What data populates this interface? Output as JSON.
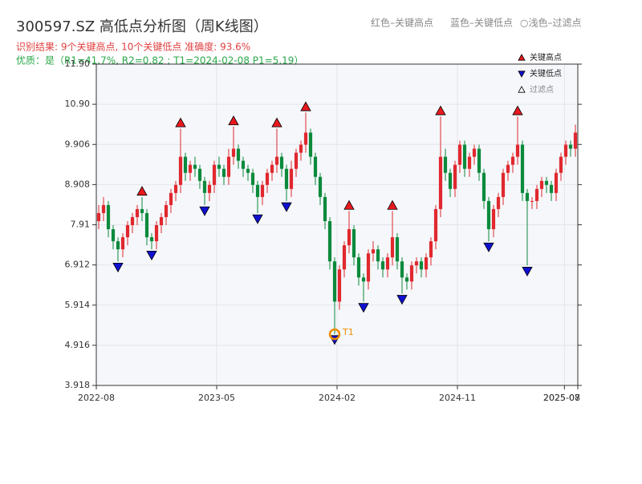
{
  "chart_data": {
    "type": "candlestick",
    "title": "300597.SZ 高低点分析图（周K线图）",
    "subtitle": "识别结果: 9个关键高点, 10个关键低点  准确度: 93.6%",
    "quality_note": "优质：是（R1=41.7%, R2=0.82 ; T1=2024-02-08 P1=5.19）",
    "header_legend": [
      "红色–关键高点",
      "蓝色–关键低点",
      "○浅色–过滤点"
    ],
    "up_color": "#e0282e",
    "down_color": "#0b8a3c",
    "grid": true,
    "legend": "upper right",
    "open": [
      8.0,
      8.2,
      8.4,
      7.8,
      7.5,
      7.3,
      7.6,
      7.9,
      8.1,
      8.3,
      8.2,
      7.6,
      7.5,
      7.9,
      8.1,
      8.4,
      8.7,
      8.9,
      9.6,
      9.2,
      9.4,
      9.3,
      9.0,
      8.7,
      8.9,
      9.4,
      9.3,
      9.1,
      9.6,
      9.8,
      9.5,
      9.3,
      9.2,
      8.9,
      8.6,
      8.9,
      9.2,
      9.4,
      9.6,
      9.3,
      8.8,
      9.3,
      9.7,
      9.9,
      10.2,
      9.6,
      9.1,
      8.6,
      8.0,
      7.0,
      6.0,
      6.8,
      7.4,
      7.8,
      7.1,
      6.6,
      6.5,
      7.2,
      7.3,
      7.0,
      6.8,
      7.1,
      7.6,
      7.0,
      6.6,
      6.5,
      6.9,
      7.0,
      6.8,
      7.1,
      7.5,
      8.3,
      9.6,
      9.2,
      8.8,
      9.4,
      9.9,
      9.3,
      9.6,
      9.8,
      9.2,
      8.5,
      7.8,
      8.3,
      8.6,
      9.2,
      9.4,
      9.6,
      9.9,
      8.7,
      8.5,
      8.5,
      8.8,
      9.0,
      8.9,
      8.7,
      9.2,
      9.6,
      9.9,
      9.8
    ],
    "high": [
      8.4,
      8.6,
      8.5,
      7.9,
      7.6,
      7.7,
      8.0,
      8.2,
      8.4,
      8.6,
      8.3,
      7.7,
      8.0,
      8.2,
      8.5,
      8.8,
      9.0,
      10.3,
      9.7,
      9.5,
      9.6,
      9.4,
      9.1,
      9.0,
      9.5,
      9.6,
      9.4,
      9.8,
      10.35,
      9.9,
      9.6,
      9.4,
      9.3,
      9.0,
      9.0,
      9.3,
      9.5,
      10.3,
      9.7,
      9.4,
      9.5,
      9.8,
      10.0,
      10.7,
      10.3,
      9.7,
      9.2,
      8.7,
      8.1,
      7.1,
      6.9,
      7.5,
      8.25,
      7.9,
      7.2,
      6.7,
      7.3,
      7.5,
      7.4,
      7.1,
      7.2,
      8.25,
      7.7,
      7.1,
      6.7,
      7.0,
      7.1,
      7.1,
      7.2,
      7.6,
      8.4,
      10.6,
      9.8,
      9.3,
      9.5,
      10.0,
      10.0,
      9.7,
      9.9,
      9.9,
      9.3,
      8.6,
      8.4,
      8.7,
      9.3,
      9.5,
      9.7,
      10.6,
      10.0,
      8.8,
      8.6,
      8.9,
      9.1,
      9.1,
      9.0,
      9.3,
      9.7,
      10.0,
      10.0,
      10.4
    ],
    "low": [
      7.8,
      8.0,
      7.6,
      7.3,
      7.0,
      7.1,
      7.4,
      7.7,
      7.9,
      8.0,
      7.4,
      7.3,
      7.3,
      7.7,
      7.9,
      8.2,
      8.5,
      8.7,
      9.0,
      9.0,
      9.1,
      8.8,
      8.4,
      8.5,
      8.7,
      9.1,
      8.9,
      8.9,
      9.4,
      9.3,
      9.1,
      9.0,
      8.7,
      8.2,
      8.4,
      8.7,
      9.0,
      9.2,
      9.1,
      8.5,
      8.6,
      9.1,
      9.5,
      9.7,
      9.4,
      8.9,
      8.4,
      7.8,
      6.8,
      5.2,
      5.8,
      6.6,
      7.2,
      6.9,
      6.4,
      6.0,
      6.3,
      7.0,
      6.8,
      6.6,
      6.6,
      6.9,
      6.8,
      6.2,
      6.3,
      6.3,
      6.7,
      6.6,
      6.6,
      6.9,
      7.3,
      8.1,
      9.0,
      8.6,
      8.6,
      9.2,
      9.1,
      9.1,
      9.4,
      9.0,
      8.3,
      7.5,
      7.6,
      8.1,
      8.4,
      9.0,
      9.2,
      9.4,
      8.5,
      6.9,
      8.3,
      8.3,
      8.6,
      8.7,
      8.5,
      8.5,
      9.0,
      9.4,
      9.6,
      9.6
    ],
    "close": [
      8.2,
      8.4,
      7.8,
      7.5,
      7.3,
      7.6,
      7.9,
      8.1,
      8.3,
      8.2,
      7.6,
      7.5,
      7.9,
      8.1,
      8.4,
      8.7,
      8.9,
      9.6,
      9.2,
      9.4,
      9.3,
      9.0,
      8.7,
      8.9,
      9.4,
      9.3,
      9.1,
      9.6,
      9.8,
      9.5,
      9.3,
      9.2,
      8.9,
      8.6,
      8.9,
      9.2,
      9.4,
      9.6,
      9.3,
      8.8,
      9.3,
      9.7,
      9.9,
      10.2,
      9.6,
      9.1,
      8.6,
      8.0,
      7.0,
      6.0,
      6.8,
      7.4,
      7.8,
      7.1,
      6.6,
      6.5,
      7.2,
      7.3,
      7.0,
      6.8,
      7.1,
      7.6,
      7.0,
      6.6,
      6.5,
      6.9,
      7.0,
      6.8,
      7.1,
      7.5,
      8.3,
      9.6,
      9.2,
      8.8,
      9.4,
      9.9,
      9.3,
      9.6,
      9.8,
      9.2,
      8.5,
      7.8,
      8.3,
      8.6,
      9.2,
      9.4,
      9.6,
      9.9,
      8.7,
      8.5,
      8.5,
      8.8,
      9.0,
      8.9,
      8.7,
      9.2,
      9.6,
      9.9,
      9.8,
      10.2
    ],
    "series": [
      {
        "name": "关键高点",
        "color": "#e8191f",
        "marker": "up",
        "values": [
          null,
          null,
          null,
          null,
          null,
          null,
          null,
          null,
          null,
          8.6,
          null,
          null,
          null,
          null,
          null,
          null,
          null,
          10.3,
          null,
          null,
          null,
          null,
          null,
          null,
          null,
          null,
          null,
          null,
          10.35,
          null,
          null,
          null,
          null,
          null,
          null,
          null,
          null,
          10.3,
          null,
          null,
          null,
          null,
          null,
          10.7,
          null,
          null,
          null,
          null,
          null,
          null,
          null,
          null,
          8.25,
          null,
          null,
          null,
          null,
          null,
          null,
          null,
          null,
          8.25,
          null,
          null,
          null,
          null,
          null,
          null,
          null,
          null,
          null,
          10.6,
          null,
          null,
          null,
          null,
          null,
          null,
          null,
          null,
          null,
          null,
          null,
          null,
          null,
          null,
          null,
          10.6,
          null,
          null,
          null,
          null,
          null,
          null,
          null,
          null,
          null,
          null,
          null,
          null
        ]
      },
      {
        "name": "关键低点",
        "color": "#1010d0",
        "marker": "down",
        "values": [
          null,
          null,
          null,
          null,
          7.0,
          null,
          null,
          null,
          null,
          null,
          null,
          7.3,
          null,
          null,
          null,
          null,
          null,
          null,
          null,
          null,
          null,
          null,
          8.4,
          null,
          null,
          null,
          null,
          null,
          null,
          null,
          null,
          null,
          null,
          8.2,
          null,
          null,
          null,
          null,
          null,
          8.5,
          null,
          null,
          null,
          null,
          null,
          null,
          null,
          null,
          null,
          5.2,
          null,
          null,
          null,
          null,
          null,
          6.0,
          null,
          null,
          null,
          null,
          null,
          null,
          null,
          6.2,
          null,
          null,
          null,
          null,
          null,
          null,
          null,
          null,
          null,
          null,
          null,
          null,
          null,
          null,
          null,
          null,
          null,
          7.5,
          null,
          null,
          null,
          null,
          null,
          null,
          null,
          6.9,
          null,
          null,
          null,
          null,
          null,
          null,
          null,
          null,
          null,
          null
        ]
      },
      {
        "name": "过滤点",
        "color": "#ffffff",
        "marker": "up",
        "values": []
      }
    ],
    "annotation": {
      "label": "T1",
      "value": 5.19,
      "color": "#f08c00"
    },
    "xlim": [
      "2022-08",
      "2025-08"
    ],
    "xticks": [
      "2022-08",
      "2023-05",
      "2024-02",
      "2024-11",
      "2025-07",
      "2025-08"
    ],
    "ylim": [
      3.918,
      11.902
    ],
    "yticks": [
      3.918,
      4.916,
      5.914,
      6.912,
      7.91,
      8.908,
      9.906,
      {
        "value": 10.904,
        "label": "10.90"
      },
      {
        "value": 11.902,
        "label": "11.90"
      }
    ]
  }
}
